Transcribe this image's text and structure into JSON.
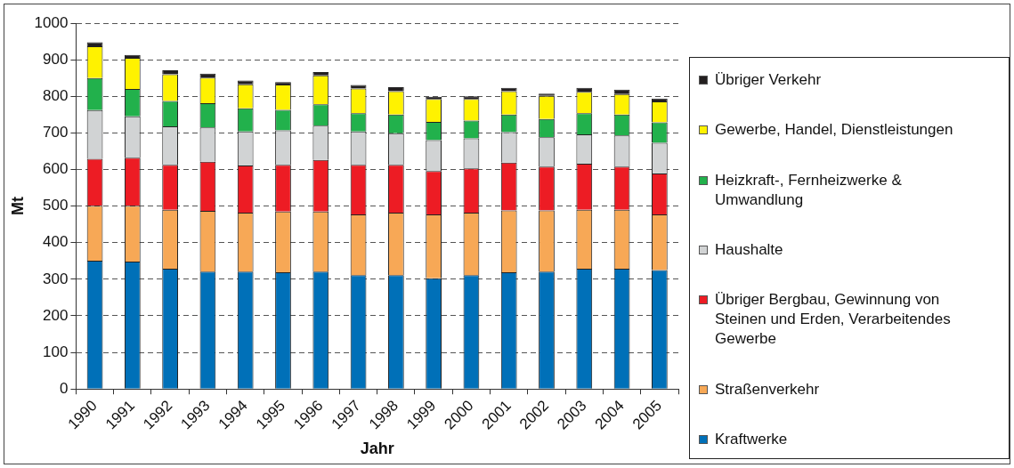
{
  "chart_data": {
    "type": "bar",
    "stacked": true,
    "xlabel": "Jahr",
    "ylabel": "Mt",
    "categories": [
      "1990",
      "1991",
      "1992",
      "1993",
      "1994",
      "1995",
      "1996",
      "1997",
      "1998",
      "1999",
      "2000",
      "2001",
      "2002",
      "2003",
      "2004",
      "2005"
    ],
    "ylim": [
      0,
      1000
    ],
    "yticks": [
      0,
      100,
      200,
      300,
      400,
      500,
      600,
      700,
      800,
      900,
      1000
    ],
    "grid": "y",
    "legend": "right",
    "series": [
      {
        "name": "Kraftwerke",
        "color": "#0070b8",
        "values": [
          351,
          348,
          329,
          321,
          321,
          319,
          321,
          311,
          311,
          303,
          311,
          319,
          321,
          329,
          329,
          325
        ]
      },
      {
        "name": "Straßenverkehr",
        "color": "#f7a856",
        "values": [
          150,
          153,
          161,
          166,
          161,
          166,
          164,
          166,
          171,
          174,
          171,
          169,
          167,
          161,
          161,
          152
        ]
      },
      {
        "name": "Übriger Bergbau, Gewinnung von Steinen und Erden, Verarbeitendes Gewerbe",
        "color": "#ed1c24",
        "values": [
          128,
          131,
          123,
          134,
          129,
          128,
          141,
          136,
          131,
          119,
          121,
          131,
          120,
          126,
          118,
          112
        ]
      },
      {
        "name": "Haushalte",
        "color": "#d1d3d4",
        "values": [
          133,
          113,
          105,
          94,
          93,
          94,
          94,
          91,
          86,
          84,
          82,
          83,
          80,
          80,
          85,
          84
        ]
      },
      {
        "name": "Heizkraft-, Fernheizwerke & Umwandlung",
        "color": "#22b14c",
        "values": [
          88,
          75,
          69,
          66,
          63,
          56,
          58,
          50,
          51,
          50,
          49,
          48,
          50,
          58,
          57,
          56
        ]
      },
      {
        "name": "Gewerbe, Handel, Dienstleistungen",
        "color": "#fff200",
        "values": [
          87,
          85,
          73,
          70,
          66,
          69,
          79,
          67,
          64,
          63,
          59,
          64,
          63,
          58,
          56,
          57
        ]
      },
      {
        "name": "Übriger Verkehr",
        "color": "#231f20",
        "values": [
          11,
          8,
          11,
          11,
          10,
          7,
          9,
          10,
          11,
          6,
          7,
          9,
          6,
          11,
          12,
          8
        ]
      }
    ]
  }
}
